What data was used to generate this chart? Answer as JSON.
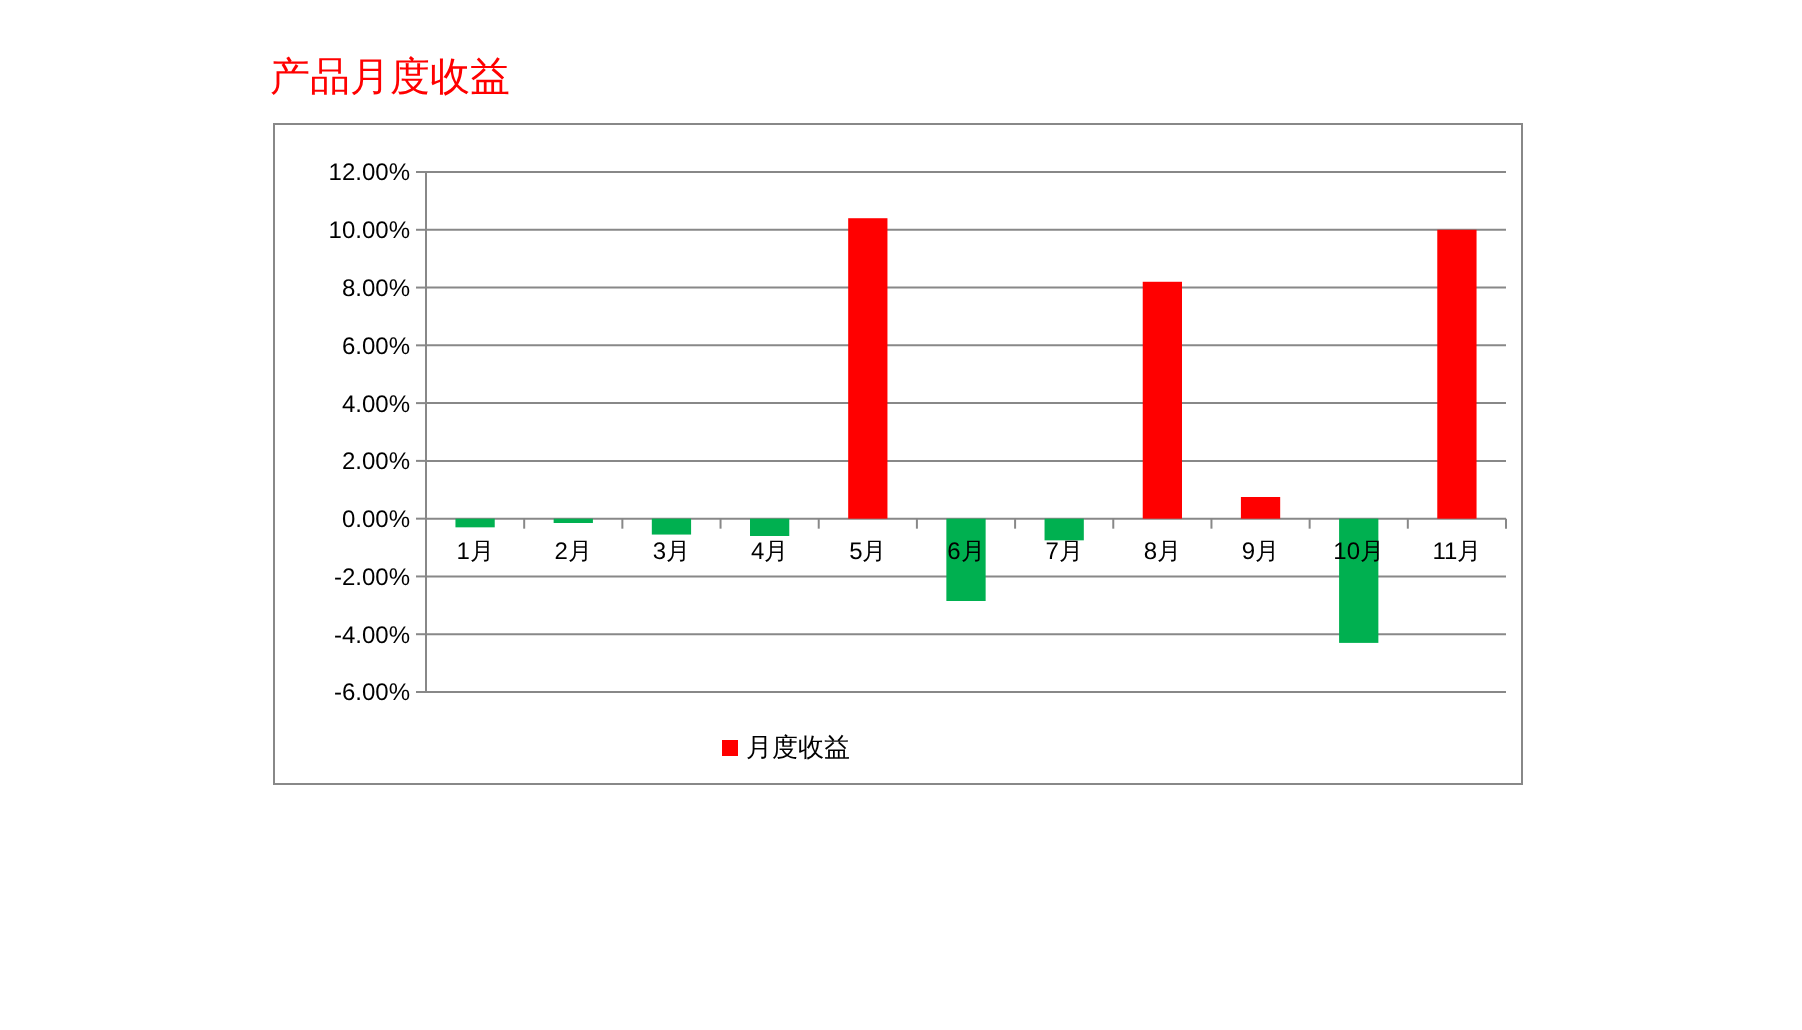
{
  "chart_data": {
    "type": "bar",
    "title": "产品月度收益",
    "categories": [
      "1月",
      "2月",
      "3月",
      "4月",
      "5月",
      "6月",
      "7月",
      "8月",
      "9月",
      "10月",
      "11月"
    ],
    "series": [
      {
        "name": "月度收益",
        "color": "#ff0000",
        "values": [
          -0.3,
          -0.15,
          -0.55,
          -0.6,
          10.4,
          -2.85,
          -0.75,
          8.2,
          0.75,
          -4.3,
          10.0
        ],
        "colors": [
          "#00b050",
          "#00b050",
          "#00b050",
          "#00b050",
          "#ff0000",
          "#00b050",
          "#00b050",
          "#ff0000",
          "#ff0000",
          "#00b050",
          "#ff0000"
        ]
      }
    ],
    "ylim": [
      -6,
      12
    ],
    "yticks": [
      {
        "value": -6,
        "label": "-6.00%"
      },
      {
        "value": -4,
        "label": "-4.00%"
      },
      {
        "value": -2,
        "label": "-2.00%"
      },
      {
        "value": 0,
        "label": "0.00%"
      },
      {
        "value": 2,
        "label": "2.00%"
      },
      {
        "value": 4,
        "label": "4.00%"
      },
      {
        "value": 6,
        "label": "6.00%"
      },
      {
        "value": 8,
        "label": "8.00%"
      },
      {
        "value": 10,
        "label": "10.00%"
      },
      {
        "value": 12,
        "label": "12.00%"
      }
    ],
    "grid": "y",
    "legend": "bottom"
  }
}
